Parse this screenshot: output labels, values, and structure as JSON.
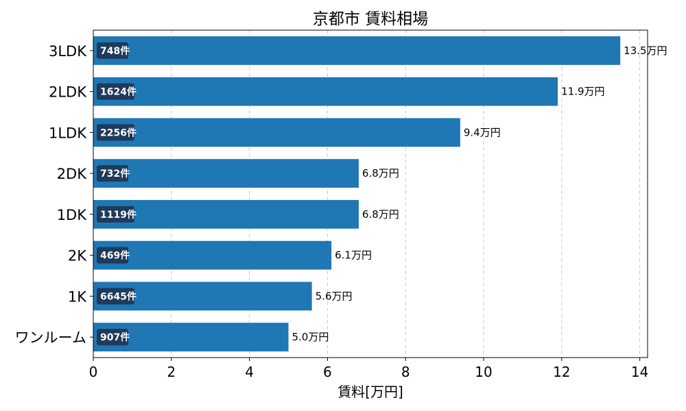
{
  "chart_data": {
    "type": "bar",
    "orientation": "horizontal",
    "title": "京都市 賃料相場",
    "xlabel": "賃料[万円]",
    "ylabel": "",
    "xlim": [
      0,
      14.2
    ],
    "xticks": [
      0,
      2,
      4,
      6,
      8,
      10,
      12,
      14
    ],
    "grid": "x-dashed",
    "bar_color": "#1f77b4",
    "count_badge_color": "#1f3a5a",
    "categories": [
      "3LDK",
      "2LDK",
      "1LDK",
      "2DK",
      "1DK",
      "2K",
      "1K",
      "ワンルーム"
    ],
    "values": [
      13.5,
      11.9,
      9.4,
      6.8,
      6.8,
      6.1,
      5.6,
      5.0
    ],
    "value_labels": [
      "13.5万円",
      "11.9万円",
      "9.4万円",
      "6.8万円",
      "6.8万円",
      "6.1万円",
      "5.6万円",
      "5.0万円"
    ],
    "count_labels": [
      "748件",
      "1624件",
      "2256件",
      "732件",
      "1119件",
      "469件",
      "6645件",
      "907件"
    ]
  }
}
